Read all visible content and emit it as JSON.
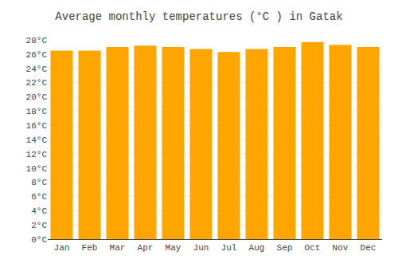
{
  "chart_data": {
    "type": "bar",
    "title": "Average monthly temperatures (°C ) in Gatak",
    "categories": [
      "Jan",
      "Feb",
      "Mar",
      "Apr",
      "May",
      "Jun",
      "Jul",
      "Aug",
      "Sep",
      "Oct",
      "Nov",
      "Dec"
    ],
    "values": [
      26.5,
      26.5,
      27.0,
      27.2,
      27.0,
      26.7,
      26.3,
      26.7,
      27.0,
      27.7,
      27.3,
      27.0
    ],
    "color": "#FFA500",
    "ylim": [
      0,
      28
    ],
    "yticks": [
      {
        "value": 0,
        "label": "0°C"
      },
      {
        "value": 2,
        "label": "2°C"
      },
      {
        "value": 4,
        "label": "4°C"
      },
      {
        "value": 6,
        "label": "6°C"
      },
      {
        "value": 8,
        "label": "8°C"
      },
      {
        "value": 10,
        "label": "10°C"
      },
      {
        "value": 12,
        "label": "12°C"
      },
      {
        "value": 14,
        "label": "14°C"
      },
      {
        "value": 16,
        "label": "16°C"
      },
      {
        "value": 18,
        "label": "18°C"
      },
      {
        "value": 20,
        "label": "20°C"
      },
      {
        "value": 22,
        "label": "22°C"
      },
      {
        "value": 24,
        "label": "24°C"
      },
      {
        "value": 26,
        "label": "26°C"
      },
      {
        "value": 28,
        "label": "28°C"
      }
    ],
    "grid": true
  }
}
